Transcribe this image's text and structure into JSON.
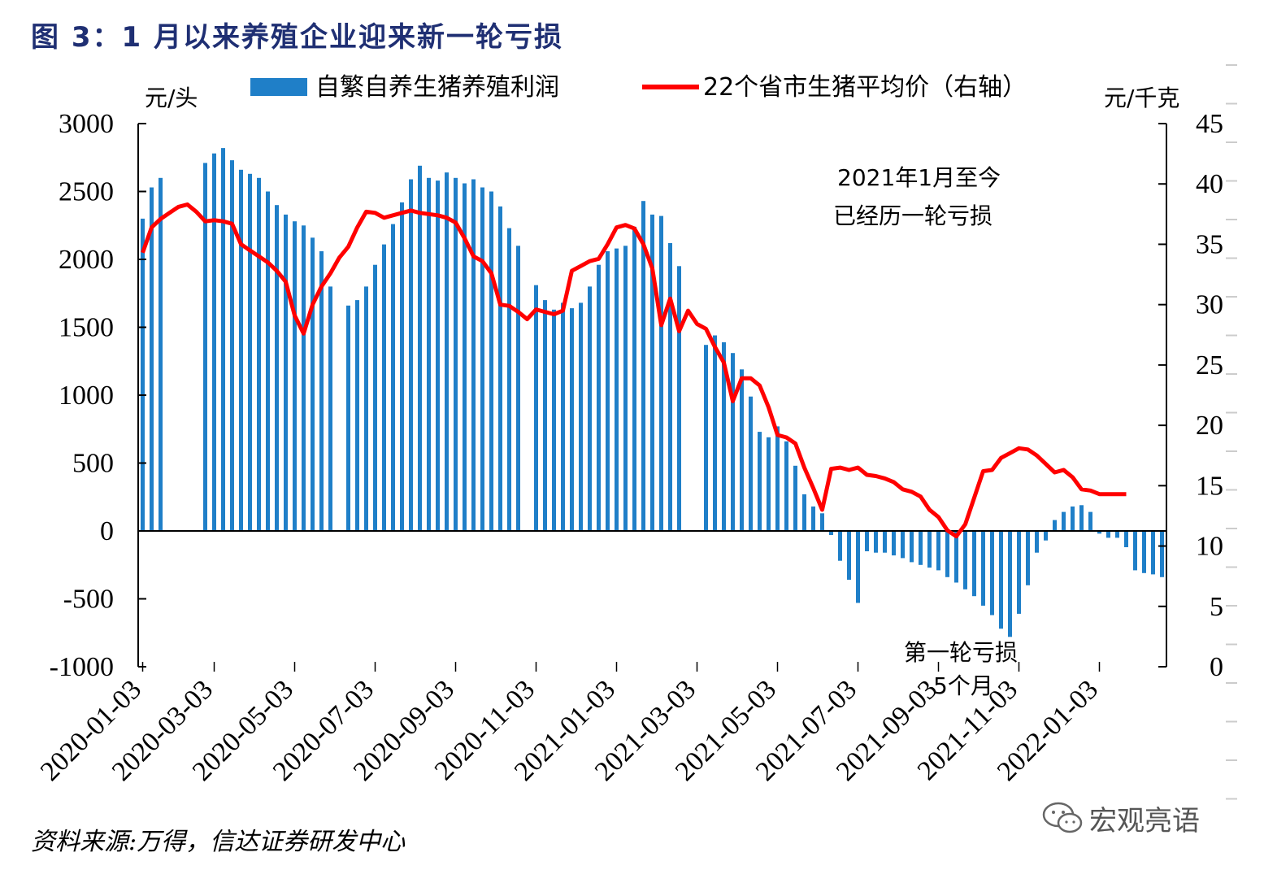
{
  "title": "图 3：1 月以来养殖企业迎来新一轮亏损",
  "source": "资料来源:万得，信达证券研发中心",
  "watermark": {
    "text": "宏观亮语",
    "icon": "wechat-icon"
  },
  "colors": {
    "bar": "#1f7fc8",
    "line": "#ff0000",
    "title": "#1f2f73"
  },
  "chart_data": {
    "type": "bar+line",
    "left_axis": {
      "unit": "元/头",
      "ylim": [
        -1000,
        3000
      ],
      "ticks": [
        3000,
        2500,
        2000,
        1500,
        1000,
        500,
        0,
        -500,
        -1000
      ]
    },
    "right_axis": {
      "unit": "元/千克",
      "ylim": [
        0,
        45
      ],
      "ticks": [
        45,
        40,
        35,
        30,
        25,
        20,
        15,
        10,
        5,
        0
      ]
    },
    "x_labels": [
      "2020-01-03",
      "2020-03-03",
      "2020-05-03",
      "2020-07-03",
      "2020-09-03",
      "2020-11-03",
      "2021-01-03",
      "2021-03-03",
      "2021-05-03",
      "2021-07-03",
      "2021-09-03",
      "2021-11-03",
      "2022-01-03"
    ],
    "x_label_index": [
      0,
      8,
      17,
      26,
      35,
      44,
      53,
      62,
      71,
      80,
      89,
      98,
      107
    ],
    "series": [
      {
        "name": "自繁自养生猪养殖利润",
        "type": "bar",
        "axis": "left",
        "values": [
          2300,
          2530,
          2600,
          null,
          null,
          null,
          null,
          2710,
          2780,
          2820,
          2730,
          2660,
          2630,
          2600,
          2500,
          2400,
          2330,
          2280,
          2250,
          2160,
          2060,
          1800,
          null,
          1660,
          1700,
          1800,
          1960,
          2110,
          2260,
          2420,
          2590,
          2690,
          2600,
          2580,
          2640,
          2600,
          2560,
          2590,
          2530,
          2500,
          2390,
          2230,
          2100,
          null,
          1810,
          1700,
          1630,
          1680,
          1640,
          1680,
          1800,
          1960,
          2060,
          2080,
          2100,
          2240,
          2430,
          2330,
          2320,
          2120,
          1950,
          null,
          null,
          1370,
          1440,
          1390,
          1310,
          1190,
          990,
          730,
          690,
          770,
          660,
          480,
          270,
          180,
          130,
          -30,
          -220,
          -360,
          -530,
          -150,
          -160,
          -160,
          -180,
          -200,
          -230,
          -250,
          -270,
          -290,
          -340,
          -380,
          -430,
          -480,
          -550,
          -620,
          -720,
          -780,
          -610,
          -400,
          -160,
          -70,
          80,
          140,
          180,
          190,
          140,
          -20,
          -50,
          -50,
          -120,
          -290,
          -310,
          -320,
          -340
        ]
      },
      {
        "name": "22个省市生猪平均价（右轴）",
        "type": "line",
        "axis": "right",
        "values": [
          34.3,
          36.4,
          37.1,
          37.6,
          38.1,
          38.3,
          37.7,
          36.9,
          37.0,
          36.9,
          36.7,
          35.0,
          34.5,
          34.0,
          33.5,
          32.8,
          31.9,
          29.1,
          27.6,
          30.0,
          31.5,
          32.6,
          33.9,
          34.8,
          36.4,
          37.7,
          37.6,
          37.2,
          37.4,
          37.6,
          37.8,
          37.6,
          37.5,
          37.4,
          37.2,
          36.8,
          35.5,
          34.0,
          33.6,
          32.6,
          30.0,
          29.9,
          29.4,
          28.8,
          29.6,
          29.4,
          29.2,
          29.5,
          32.8,
          33.2,
          33.6,
          33.8,
          35.0,
          36.4,
          36.6,
          36.3,
          35.0,
          33.0,
          28.3,
          30.5,
          27.8,
          29.5,
          28.4,
          28.0,
          26.5,
          25.2,
          22.0,
          23.9,
          23.9,
          23.3,
          21.5,
          19.2,
          19.0,
          18.5,
          16.5,
          14.8,
          13.0,
          16.4,
          16.5,
          16.3,
          16.5,
          15.9,
          15.8,
          15.6,
          15.3,
          14.7,
          14.5,
          14.1,
          13.0,
          12.4,
          11.3,
          10.8,
          11.8,
          14.0,
          16.2,
          16.3,
          17.3,
          17.7,
          18.1,
          18.0,
          17.5,
          16.8,
          16.1,
          16.3,
          15.7,
          14.7,
          14.6,
          14.3,
          14.3,
          14.3,
          14.3
        ]
      }
    ],
    "annotations": [
      {
        "text": "2021年1月至今",
        "line": 1
      },
      {
        "text": "已经历一轮亏损",
        "line": 2
      },
      {
        "text": "第一轮亏损",
        "line": 3
      },
      {
        "text": "5个月",
        "line": 4
      }
    ]
  }
}
